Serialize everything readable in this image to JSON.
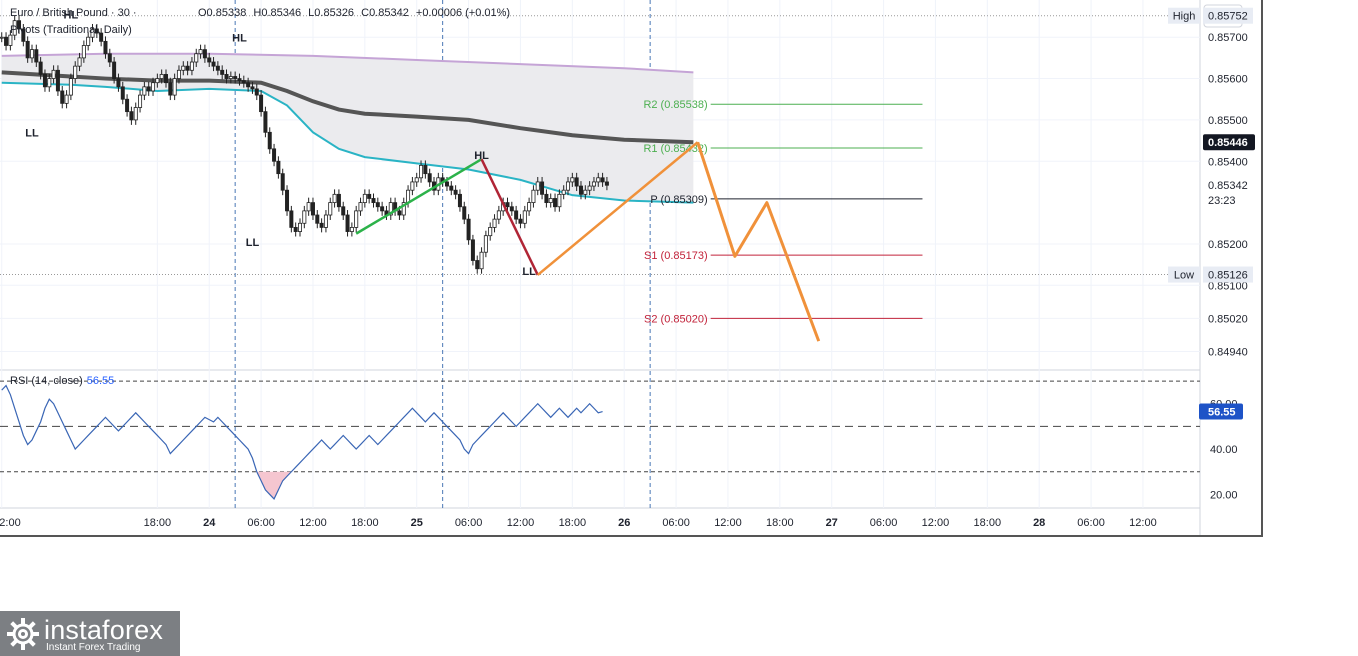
{
  "header": {
    "symbol": "Euro / British Pound · 30 ·",
    "pivots": "Pivots (Traditional, Daily)",
    "open": "O0.85338",
    "high": "H0.85346",
    "low": "L0.85326",
    "close": "C0.85342",
    "change": "+0.00006 (+0.01%)"
  },
  "rsi_label": {
    "name": "RSI (14, close)",
    "value": "56.55"
  },
  "logo": {
    "name": "instaforex",
    "tagline": "Instant Forex Trading",
    "icon": "gear-icon"
  },
  "colors": {
    "upper_band": "#c5a4d6",
    "center_line": "#555555",
    "lower_band": "#2ab4c5",
    "projection": "#f0913a",
    "up_trend": "#2cb24a",
    "down_trend": "#b02536",
    "r_levels": "#4caf50",
    "s_levels": "#c2233a",
    "rsi_line": "#3a66b5",
    "current_price_bg": "#131722"
  },
  "chart_data": {
    "type": "candlestick",
    "currency": "GBP",
    "y_ticks": [
      "0.85700",
      "0.85600",
      "0.85500",
      "0.85400",
      "0.85200",
      "0.85100",
      "0.85020",
      "0.84940"
    ],
    "ylim": [
      0.849,
      0.8579
    ],
    "x_ticks": [
      {
        "label": "2:00",
        "h": -12
      },
      {
        "label": "18:00",
        "h": 6
      },
      {
        "label": "24",
        "h": 12
      },
      {
        "label": "06:00",
        "h": 18
      },
      {
        "label": "12:00",
        "h": 24
      },
      {
        "label": "18:00",
        "h": 30
      },
      {
        "label": "25",
        "h": 36
      },
      {
        "label": "06:00",
        "h": 42
      },
      {
        "label": "12:00",
        "h": 48
      },
      {
        "label": "18:00",
        "h": 54
      },
      {
        "label": "26",
        "h": 60
      },
      {
        "label": "06:00",
        "h": 66
      },
      {
        "label": "12:00",
        "h": 72
      },
      {
        "label": "18:00",
        "h": 78
      },
      {
        "label": "27",
        "h": 84
      },
      {
        "label": "06:00",
        "h": 90
      },
      {
        "label": "12:00",
        "h": 96
      },
      {
        "label": "18:00",
        "h": 102
      },
      {
        "label": "28",
        "h": 108
      },
      {
        "label": "06:00",
        "h": 114
      },
      {
        "label": "12:00",
        "h": 120
      }
    ],
    "xlim_hours": [
      -12.2,
      126.6
    ],
    "session_lines_h": [
      15,
      39,
      63
    ],
    "high_line": {
      "label": "High",
      "value": "0.85752",
      "y": 0.85752
    },
    "low_line": {
      "label": "Low",
      "value": "0.85126",
      "y": 0.85126
    },
    "current_price": {
      "value": "0.85446",
      "y": 0.85446
    },
    "last_price": {
      "value": "0.85342",
      "y": 0.85342,
      "countdown": "23:23"
    },
    "pivots": [
      {
        "label": "R2 (0.85538)",
        "y": 0.85538,
        "kind": "r"
      },
      {
        "label": "R1 (0.85432)",
        "y": 0.85432,
        "kind": "r"
      },
      {
        "label": "P (0.85309)",
        "y": 0.85309,
        "kind": "p"
      },
      {
        "label": "S1 (0.85173)",
        "y": 0.85173,
        "kind": "s"
      },
      {
        "label": "S2 (0.85020)",
        "y": 0.8502,
        "kind": "s"
      }
    ],
    "pivot_line_h": [
      70,
      94.5
    ],
    "swing_labels": [
      {
        "label": "HL",
        "h": -4,
        "y": 0.85745
      },
      {
        "label": "HL",
        "h": 15.5,
        "y": 0.8569
      },
      {
        "label": "LL",
        "h": -8.5,
        "y": 0.8546
      },
      {
        "label": "LL",
        "h": 17,
        "y": 0.85195
      },
      {
        "label": "HL",
        "h": 43.5,
        "y": 0.85405
      },
      {
        "label": "LL",
        "h": 49,
        "y": 0.85125
      }
    ],
    "series": [
      {
        "name": "",
        "role": "upper_band",
        "x": [
          -12,
          0,
          12,
          24,
          36,
          48,
          60,
          68
        ],
        "y": [
          0.85655,
          0.8566,
          0.8566,
          0.85655,
          0.85645,
          0.85635,
          0.85625,
          0.85615
        ]
      },
      {
        "name": "",
        "role": "center",
        "x": [
          -12,
          -4,
          0,
          6,
          12,
          18,
          21,
          24,
          27,
          30,
          36,
          42,
          48,
          54,
          60,
          68
        ],
        "y": [
          0.85615,
          0.85605,
          0.856,
          0.85595,
          0.85595,
          0.8559,
          0.8557,
          0.85545,
          0.85525,
          0.85515,
          0.85508,
          0.855,
          0.8548,
          0.85463,
          0.85452,
          0.85446
        ]
      },
      {
        "name": "",
        "role": "lower_band",
        "x": [
          -12,
          -4,
          0,
          6,
          12,
          18,
          21,
          24,
          27,
          30,
          36,
          42,
          48,
          54,
          60,
          68
        ],
        "y": [
          0.8559,
          0.85585,
          0.8558,
          0.8557,
          0.85575,
          0.8557,
          0.85535,
          0.8547,
          0.8543,
          0.8541,
          0.85395,
          0.8538,
          0.85355,
          0.85318,
          0.85305,
          0.853
        ]
      },
      {
        "name": "",
        "role": "up_trend",
        "x": [
          29,
          43.5
        ],
        "y": [
          0.85225,
          0.85405
        ]
      },
      {
        "name": "",
        "role": "down_trend",
        "x": [
          43.5,
          50
        ],
        "y": [
          0.85405,
          0.85125
        ]
      },
      {
        "name": "",
        "role": "up_trend2",
        "x": [
          50,
          68.5
        ],
        "y": [
          0.85125,
          0.85446
        ]
      },
      {
        "name": "",
        "role": "projection",
        "x": [
          68.5,
          72.8,
          76.5,
          82.5
        ],
        "y": [
          0.85446,
          0.8517,
          0.853,
          0.84965
        ]
      }
    ],
    "candles_close": {
      "x_start": -12,
      "step": 0.5,
      "values": [
        0.857,
        0.8568,
        0.85705,
        0.8574,
        0.8572,
        0.8569,
        0.8565,
        0.8567,
        0.8564,
        0.8561,
        0.8558,
        0.856,
        0.8562,
        0.8557,
        0.8554,
        0.8556,
        0.856,
        0.8563,
        0.8565,
        0.8568,
        0.857,
        0.8572,
        0.8571,
        0.8569,
        0.8566,
        0.8564,
        0.856,
        0.8558,
        0.8555,
        0.8552,
        0.855,
        0.8553,
        0.8556,
        0.8558,
        0.8557,
        0.8559,
        0.856,
        0.8561,
        0.8559,
        0.8556,
        0.856,
        0.8562,
        0.8563,
        0.8562,
        0.8564,
        0.8566,
        0.8567,
        0.8565,
        0.8564,
        0.8563,
        0.8562,
        0.8561,
        0.856,
        0.85605,
        0.856,
        0.85595,
        0.8559,
        0.8558,
        0.85575,
        0.8556,
        0.8552,
        0.8547,
        0.8543,
        0.854,
        0.8537,
        0.8533,
        0.8528,
        0.8524,
        0.8523,
        0.8525,
        0.8528,
        0.853,
        0.8527,
        0.8525,
        0.8524,
        0.8527,
        0.853,
        0.8532,
        0.8529,
        0.8527,
        0.8523,
        0.8524,
        0.8528,
        0.853,
        0.8532,
        0.8531,
        0.853,
        0.8529,
        0.8528,
        0.8527,
        0.853,
        0.8528,
        0.8527,
        0.853,
        0.8533,
        0.8535,
        0.8536,
        0.8539,
        0.8537,
        0.8535,
        0.8533,
        0.8536,
        0.8535,
        0.8534,
        0.8533,
        0.8532,
        0.8529,
        0.8526,
        0.8521,
        0.8516,
        0.8514,
        0.8518,
        0.8522,
        0.8524,
        0.8526,
        0.8528,
        0.853,
        0.8529,
        0.8528,
        0.8526,
        0.8525,
        0.8528,
        0.853,
        0.8533,
        0.8535,
        0.8532,
        0.853,
        0.8531,
        0.8529,
        0.8532,
        0.8533,
        0.8535,
        0.8536,
        0.8534,
        0.8532,
        0.8533,
        0.8534,
        0.8535,
        0.8536,
        0.8535,
        0.85342
      ]
    },
    "rsi": {
      "name": "RSI (14, close)",
      "value": "56.55",
      "y_ticks": [
        "60.00",
        "40.00",
        "20.00"
      ],
      "levels": [
        70,
        50,
        30
      ],
      "ylim": [
        14,
        74
      ],
      "x_start": -12,
      "step": 0.5,
      "values": [
        66,
        68,
        64,
        58,
        52,
        46,
        42,
        44,
        48,
        52,
        58,
        62,
        60,
        56,
        52,
        48,
        44,
        40,
        42,
        44,
        46,
        48,
        50,
        52,
        54,
        52,
        50,
        48,
        50,
        52,
        54,
        56,
        54,
        52,
        50,
        48,
        46,
        44,
        42,
        38,
        40,
        42,
        44,
        46,
        48,
        50,
        52,
        54,
        53,
        52,
        54,
        52,
        50,
        48,
        46,
        44,
        42,
        40,
        36,
        30,
        26,
        22,
        20,
        18,
        22,
        26,
        28,
        30,
        32,
        34,
        36,
        38,
        40,
        42,
        44,
        42,
        40,
        42,
        44,
        46,
        44,
        42,
        40,
        42,
        44,
        46,
        44,
        42,
        44,
        46,
        48,
        50,
        52,
        54,
        56,
        58,
        56,
        54,
        52,
        54,
        56,
        54,
        52,
        50,
        48,
        46,
        44,
        40,
        38,
        42,
        44,
        46,
        48,
        50,
        52,
        54,
        56,
        54,
        52,
        50,
        52,
        54,
        56,
        58,
        60,
        58,
        56,
        54,
        56,
        58,
        56,
        54,
        56,
        58,
        56,
        58,
        60,
        58,
        56,
        56.55
      ]
    }
  }
}
